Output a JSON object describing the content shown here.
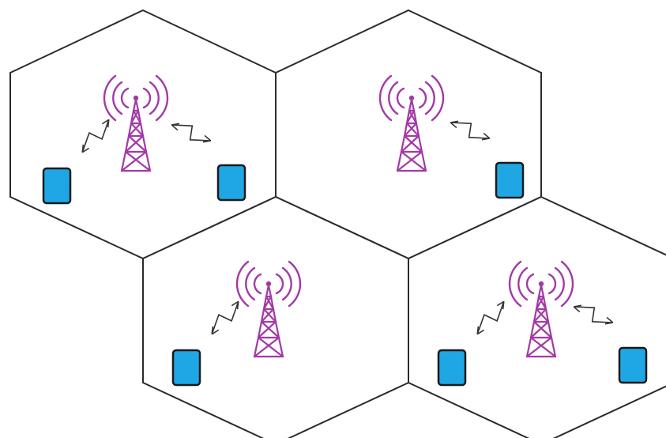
{
  "colors": {
    "cell_border": "#2b2b2b",
    "tower": "#a23aa6",
    "device_fill": "#1ea7e4",
    "device_border": "#1a1a1a",
    "link_arrow": "#333333"
  },
  "icons": {
    "tower": "cell-tower-icon",
    "device": "mobile-device-icon",
    "link": "bidirectional-lightning-arrow-icon"
  },
  "cells": [
    {
      "id": "cell-top-left",
      "devices": 2,
      "links": 2
    },
    {
      "id": "cell-top-right",
      "devices": 1,
      "links": 1
    },
    {
      "id": "cell-bottom-left",
      "devices": 1,
      "links": 1
    },
    {
      "id": "cell-bottom-right",
      "devices": 2,
      "links": 2
    }
  ]
}
